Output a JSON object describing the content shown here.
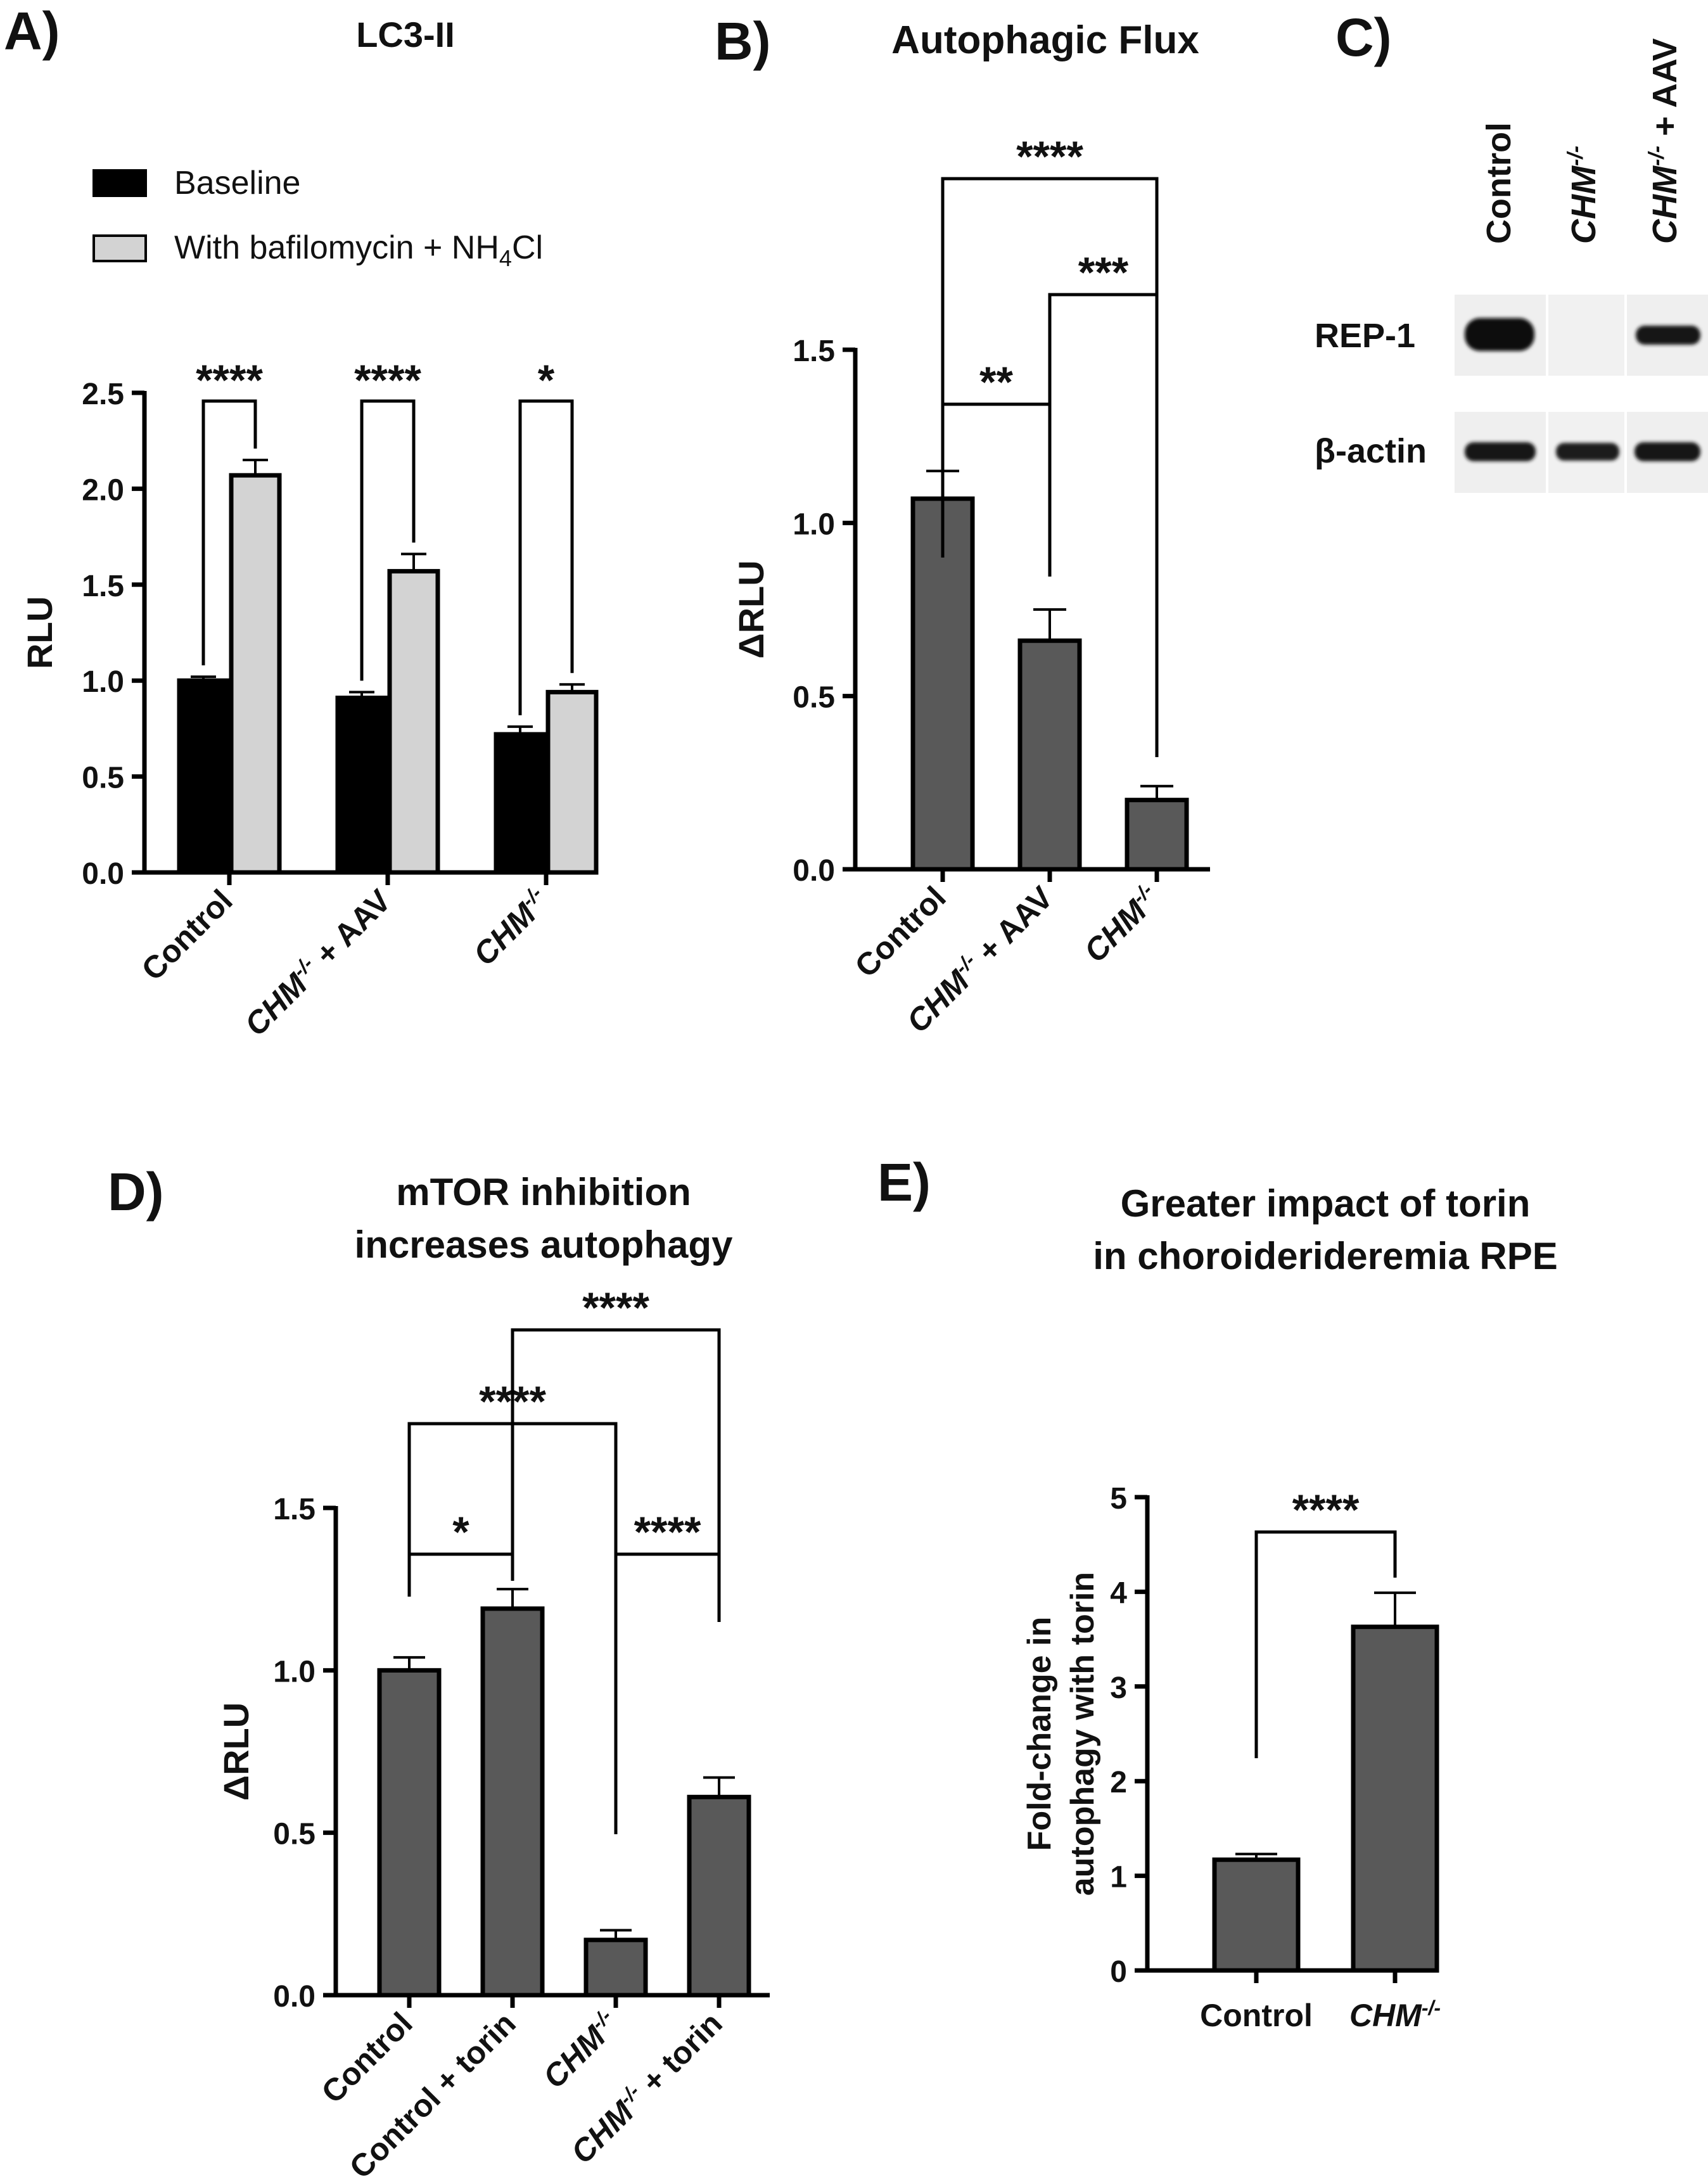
{
  "chart_data": [
    {
      "type": "bar",
      "panel": "A)",
      "title": "LC3-II",
      "ylabel": "RLU",
      "ylim": [
        0,
        2.5
      ],
      "ytick_labels": [
        "0.0",
        "0.5",
        "1.0",
        "1.5",
        "2.0",
        "2.5"
      ],
      "categories": [
        "Control",
        "CHM-/- + AAV",
        "CHM-/-"
      ],
      "series": [
        {
          "name": "Baseline",
          "values": [
            1.0,
            0.91,
            0.72
          ],
          "errors": [
            0.02,
            0.03,
            0.04
          ],
          "color": "#000000"
        },
        {
          "name": "With bafilomycin + NH4Cl",
          "values": [
            2.07,
            1.57,
            0.94
          ],
          "errors": [
            0.08,
            0.09,
            0.04
          ],
          "color": "#d3d3d3"
        }
      ],
      "legend": {
        "baseline": "Baseline",
        "treated_prefix": "With bafilomycin + NH",
        "treated_sub": "4",
        "treated_suffix": "Cl"
      },
      "significance": [
        "****",
        "****",
        "*"
      ]
    },
    {
      "type": "bar",
      "panel": "B)",
      "title": "Autophagic Flux",
      "ylabel": "ΔRLU",
      "ylim": [
        0,
        1.5
      ],
      "ytick_labels": [
        "0.0",
        "0.5",
        "1.0",
        "1.5"
      ],
      "categories": [
        "Control",
        "CHM-/- + AAV",
        "CHM-/-"
      ],
      "values": [
        1.07,
        0.66,
        0.2
      ],
      "errors": [
        0.08,
        0.09,
        0.04
      ],
      "color": "#595959",
      "significance": [
        {
          "label": "**",
          "from": 0,
          "to": 1
        },
        {
          "label": "***",
          "from": 1,
          "to": 2
        },
        {
          "label": "****",
          "from": 0,
          "to": 2
        }
      ]
    },
    {
      "type": "bar",
      "panel": "D)",
      "title_line1": "mTOR inhibition",
      "title_line2": "increases autophagy",
      "ylabel": "ΔRLU",
      "ylim": [
        0,
        1.5
      ],
      "ytick_labels": [
        "0.0",
        "0.5",
        "1.0",
        "1.5"
      ],
      "categories": [
        "Control",
        "Control + torin",
        "CHM-/-",
        "CHM-/- + torin"
      ],
      "values": [
        1.0,
        1.19,
        0.17,
        0.61
      ],
      "errors": [
        0.04,
        0.06,
        0.03,
        0.06
      ],
      "color": "#595959",
      "significance": [
        {
          "label": "*",
          "from": 0,
          "to": 1
        },
        {
          "label": "****",
          "from": 2,
          "to": 3
        },
        {
          "label": "****",
          "from": 0,
          "to": 2
        },
        {
          "label": "****",
          "from": 1,
          "to": 3
        }
      ]
    },
    {
      "type": "bar",
      "panel": "E)",
      "title_line1": "Greater impact of torin",
      "title_line2": "in choroiderideremia RPE",
      "ylabel_line1": "Fold-change in",
      "ylabel_line2": "autophagy with torin",
      "ylim": [
        0,
        5
      ],
      "ytick_labels": [
        "0",
        "1",
        "2",
        "3",
        "4",
        "5"
      ],
      "categories": [
        "Control",
        "CHM-/-"
      ],
      "values": [
        1.17,
        3.63
      ],
      "errors": [
        0.06,
        0.36
      ],
      "color": "#595959",
      "significance": [
        {
          "label": "****",
          "from": 0,
          "to": 1
        }
      ]
    }
  ],
  "labels": {
    "chm": "CHM",
    "chm_sup": "-/-",
    "plus_aav": " + AAV",
    "plus_torin": " + torin",
    "control": "Control",
    "control_torin": "Control + torin"
  },
  "blot": {
    "panel": "C)",
    "lanes": [
      "Control",
      "CHM-/-",
      "CHM-/- + AAV"
    ],
    "rows": [
      {
        "label": "REP-1",
        "intensities": [
          1.0,
          0.0,
          0.75
        ]
      },
      {
        "label": "β-actin",
        "intensities": [
          0.85,
          0.8,
          0.85
        ]
      }
    ]
  }
}
